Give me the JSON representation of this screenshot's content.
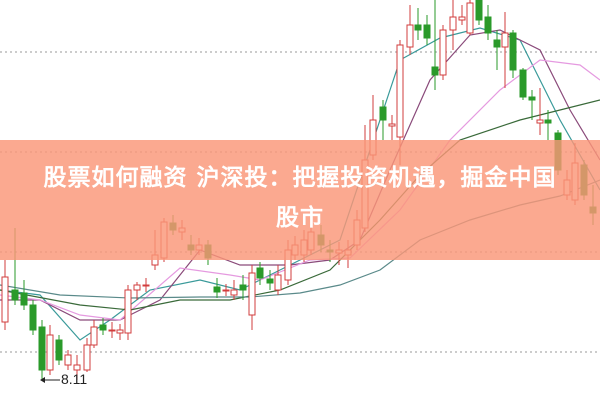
{
  "article": {
    "title_line1": "股票如何融资 沪深投：把握投资机遇，掘金中国",
    "title_line2": "股市"
  },
  "chart": {
    "low_price_label": "8.11",
    "colors": {
      "up": "#d23c3c",
      "down": "#2a9a2a",
      "banner": "#f9967a"
    }
  }
}
